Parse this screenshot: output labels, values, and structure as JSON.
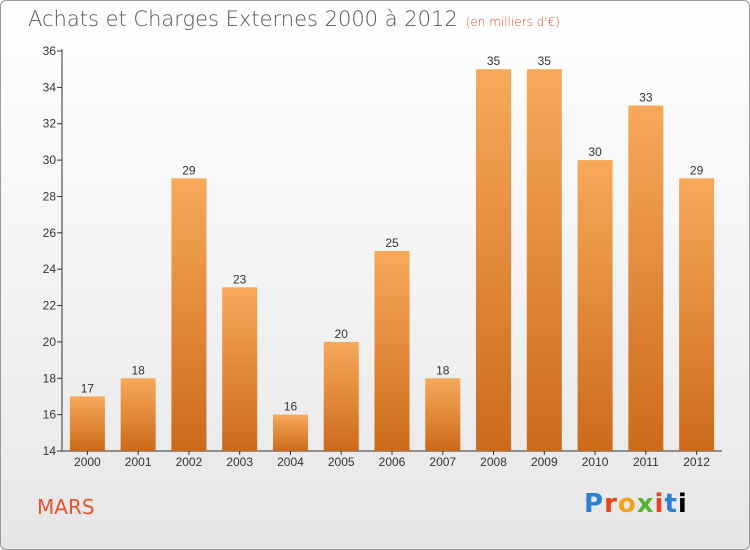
{
  "header": {
    "title": "Achats et Charges Externes 2000 à 2012",
    "subtitle": "(en milliers d'€)"
  },
  "footer": {
    "city": "MARS",
    "brand": "Proxiti"
  },
  "colors": {
    "bar_light": "#f7a95a",
    "bar_dark": "#cc6a1a",
    "title": "#555555",
    "accent": "#e0552f"
  },
  "chart_data": {
    "type": "bar",
    "categories": [
      "2000",
      "2001",
      "2002",
      "2003",
      "2004",
      "2005",
      "2006",
      "2007",
      "2008",
      "2009",
      "2010",
      "2011",
      "2012"
    ],
    "values": [
      17,
      18,
      29,
      23,
      16,
      20,
      25,
      18,
      35,
      35,
      30,
      33,
      29
    ],
    "ylim": [
      14,
      36
    ],
    "yticks": [
      14,
      16,
      18,
      20,
      22,
      24,
      26,
      28,
      30,
      32,
      34,
      36
    ],
    "grid": false,
    "legend": "none"
  }
}
